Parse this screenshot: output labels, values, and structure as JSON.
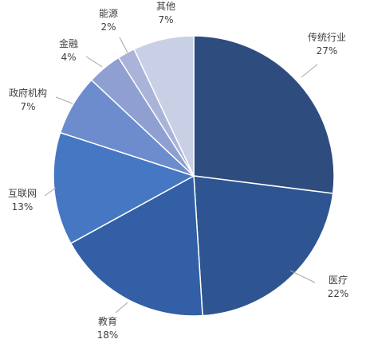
{
  "chart_data": {
    "type": "pie",
    "title": "",
    "categories": [
      "传统行业",
      "医疗",
      "教育",
      "互联网",
      "政府机构",
      "金融",
      "能源",
      "其他"
    ],
    "values": [
      27,
      22,
      18,
      13,
      7,
      4,
      2,
      7
    ],
    "value_labels": [
      "27%",
      "22%",
      "18%",
      "13%",
      "7%",
      "4%",
      "2%",
      "7%"
    ],
    "colors": [
      "#2f4c7f",
      "#2e5591",
      "#325fa6",
      "#4677c2",
      "#6c8ccd",
      "#8f9fd1",
      "#aab4d9",
      "#c9d0e6"
    ],
    "start": "12 o'clock",
    "direction": "clockwise",
    "labels_outside": true,
    "leader_lines": true,
    "legend": "none"
  }
}
